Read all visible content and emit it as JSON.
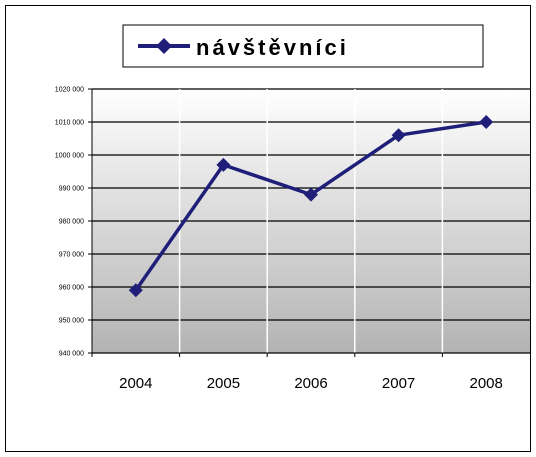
{
  "chart_data": {
    "type": "line",
    "categories": [
      "2004",
      "2005",
      "2006",
      "2007",
      "2008"
    ],
    "series": [
      {
        "name": "návštěvníci",
        "values": [
          959000,
          997000,
          988000,
          1006000,
          1010000
        ],
        "color": "#1f1f7a",
        "marker": "diamond"
      }
    ],
    "ylim": [
      940000,
      1020000
    ],
    "yticks": [
      940000,
      950000,
      960000,
      970000,
      980000,
      990000,
      1000000,
      1010000,
      1020000
    ],
    "ytick_labels": [
      "940 000",
      "950 000",
      "960 000",
      "970 000",
      "980 000",
      "990 000",
      "1000 000",
      "1010 000",
      "1020 000"
    ],
    "grid": true,
    "legend_position": "top",
    "title": "",
    "xlabel": "",
    "ylabel": "",
    "colors": {
      "plot_gradient_top": "#ffffff",
      "plot_gradient_bottom": "#b3b3b3",
      "gridline": "#000000",
      "line": "#1f1f7a"
    }
  }
}
